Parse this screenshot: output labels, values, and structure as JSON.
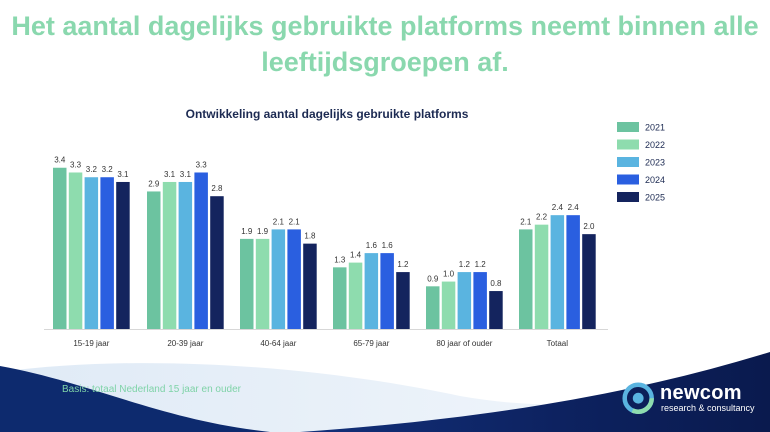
{
  "headline": {
    "line1": "Het aantal dagelijks gebruikte platforms neemt binnen alle",
    "line2": "leeftijdsgroepen af."
  },
  "chart_data": {
    "type": "bar",
    "title": "Ontwikkeling aantal dagelijks gebruikte platforms",
    "categories": [
      "15-19 jaar",
      "20-39 jaar",
      "40-64 jaar",
      "65-79 jaar",
      "80 jaar of ouder",
      "Totaal"
    ],
    "series": [
      {
        "name": "2021",
        "color": "#6cc3a0",
        "values": [
          3.4,
          2.9,
          1.9,
          1.3,
          0.9,
          2.1
        ]
      },
      {
        "name": "2022",
        "color": "#8edcae",
        "values": [
          3.3,
          3.1,
          1.9,
          1.4,
          1.0,
          2.2
        ]
      },
      {
        "name": "2023",
        "color": "#5ab4e0",
        "values": [
          3.2,
          3.1,
          2.1,
          1.6,
          1.2,
          2.4
        ]
      },
      {
        "name": "2024",
        "color": "#2a5fe0",
        "values": [
          3.2,
          3.3,
          2.1,
          1.6,
          1.2,
          2.4
        ]
      },
      {
        "name": "2025",
        "color": "#14245e",
        "values": [
          3.1,
          2.8,
          1.8,
          1.2,
          0.8,
          2.0
        ]
      }
    ],
    "value_labels": [
      [
        "3.4",
        "2.9",
        "1.9",
        "1.3",
        "0.9",
        "2.1"
      ],
      [
        "3.3",
        "3.1",
        "1.9",
        "1.4",
        "1.0",
        "2.2"
      ],
      [
        "3.2",
        "3.1",
        "2.1",
        "1.6",
        "1.2",
        "2.4"
      ],
      [
        "3.2",
        "3.3",
        "2.1",
        "1.6",
        "1.2",
        "2.4"
      ],
      [
        "3.1",
        "2.8",
        "1.8",
        "1.2",
        "0.8",
        "2.0"
      ]
    ],
    "ylim": [
      0,
      3.5
    ],
    "grid": false,
    "legend_position": "right"
  },
  "footer": {
    "basis": "Basis: totaal Nederland 15 jaar en ouder",
    "brand": "newcom",
    "brand_sub": "research & consultancy"
  },
  "colors": {
    "accent_green": "#8ad8ae",
    "navy": "#0e1f54",
    "title_text": "#1c2a52"
  }
}
